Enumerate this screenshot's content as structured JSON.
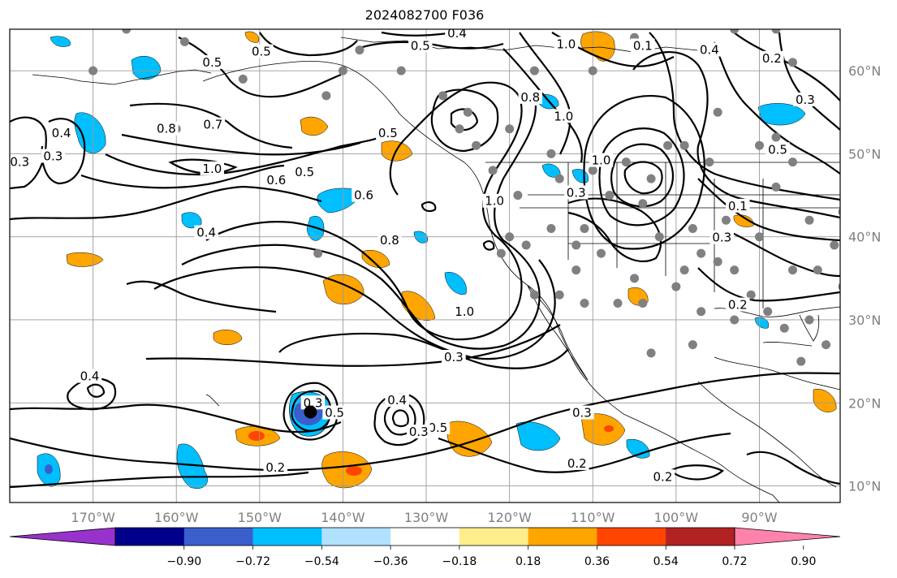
{
  "title": "2024082700 F036",
  "lon_labels": [
    "170°W",
    "160°W",
    "150°W",
    "140°W",
    "130°W",
    "120°W",
    "110°W",
    "100°W",
    "90°W"
  ],
  "lat_labels": [
    "60°N",
    "50°N",
    "40°N",
    "30°N",
    "20°N",
    "10°N"
  ],
  "colorbar": {
    "colors": [
      "#9932cc",
      "#00008b",
      "#3a5fcd",
      "#00bfff",
      "#b0e2ff",
      "#ffffff",
      "#ffec8b",
      "#ffa500",
      "#ff4500",
      "#b22222",
      "#ff82ab"
    ],
    "tick_labels": [
      "−0.90",
      "−0.72",
      "−0.54",
      "−0.36",
      "−0.18",
      "0.18",
      "0.36",
      "0.54",
      "0.72",
      "0.90"
    ]
  },
  "contour_labels": [
    {
      "text": "0.5",
      "lon": -149.8,
      "lat": 62.3
    },
    {
      "text": "0.5",
      "lon": -130.7,
      "lat": 63.0
    },
    {
      "text": "0.4",
      "lon": -126.3,
      "lat": 64.5
    },
    {
      "text": "1.0",
      "lon": -113.2,
      "lat": 63.2
    },
    {
      "text": "0.1",
      "lon": -104.0,
      "lat": 63.0
    },
    {
      "text": "0.4",
      "lon": -96.0,
      "lat": 62.5
    },
    {
      "text": "0.2",
      "lon": -88.5,
      "lat": 61.5
    },
    {
      "text": "0.3",
      "lon": -84.5,
      "lat": 56.5
    },
    {
      "text": "0.5",
      "lon": -87.8,
      "lat": 50.5
    },
    {
      "text": "0.5",
      "lon": -155.7,
      "lat": 61.0
    },
    {
      "text": "0.8",
      "lon": -161.2,
      "lat": 53.0
    },
    {
      "text": "0.7",
      "lon": -155.6,
      "lat": 53.5
    },
    {
      "text": "1.0",
      "lon": -155.7,
      "lat": 48.2
    },
    {
      "text": "0.6",
      "lon": -148.0,
      "lat": 46.8
    },
    {
      "text": "0.5",
      "lon": -144.6,
      "lat": 47.8
    },
    {
      "text": "0.6",
      "lon": -137.5,
      "lat": 45.0
    },
    {
      "text": "0.4",
      "lon": -156.4,
      "lat": 40.5
    },
    {
      "text": "0.8",
      "lon": -134.4,
      "lat": 39.6
    },
    {
      "text": "0.5",
      "lon": -134.6,
      "lat": 52.5
    },
    {
      "text": "1.0",
      "lon": -121.8,
      "lat": 44.3
    },
    {
      "text": "0.8",
      "lon": -117.5,
      "lat": 56.8
    },
    {
      "text": "1.0",
      "lon": -113.5,
      "lat": 54.5
    },
    {
      "text": "1.0",
      "lon": -109.0,
      "lat": 49.2
    },
    {
      "text": "0.3",
      "lon": -112.0,
      "lat": 45.3
    },
    {
      "text": "0.4",
      "lon": -173.8,
      "lat": 52.5
    },
    {
      "text": "0.3",
      "lon": -174.8,
      "lat": 49.7
    },
    {
      "text": "0.3",
      "lon": -178.8,
      "lat": 49.0
    },
    {
      "text": "1.0",
      "lon": -125.4,
      "lat": 31.0
    },
    {
      "text": "0.3",
      "lon": -126.7,
      "lat": 25.5
    },
    {
      "text": "0.4",
      "lon": -170.4,
      "lat": 23.2
    },
    {
      "text": "0.3",
      "lon": -143.6,
      "lat": 20.0
    },
    {
      "text": "0.5",
      "lon": -141.0,
      "lat": 18.8
    },
    {
      "text": "0.4",
      "lon": -133.5,
      "lat": 20.3
    },
    {
      "text": "0.5",
      "lon": -128.6,
      "lat": 17.0
    },
    {
      "text": "0.3",
      "lon": -130.9,
      "lat": 16.5
    },
    {
      "text": "0.3",
      "lon": -111.3,
      "lat": 18.8
    },
    {
      "text": "0.2",
      "lon": -148.1,
      "lat": 12.2
    },
    {
      "text": "0.2",
      "lon": -111.9,
      "lat": 12.7
    },
    {
      "text": "0.2",
      "lon": -101.6,
      "lat": 11.1
    },
    {
      "text": "0.3",
      "lon": -94.5,
      "lat": 39.9
    },
    {
      "text": "0.1",
      "lon": -92.6,
      "lat": 43.7
    },
    {
      "text": "0.2",
      "lon": -92.6,
      "lat": 31.8
    }
  ],
  "station_markers": {
    "symbol": "gray-dot",
    "color": "#808080",
    "points": [
      [
        -166,
        65
      ],
      [
        -159,
        63.5
      ],
      [
        -160,
        53
      ],
      [
        -170,
        60
      ],
      [
        -152,
        59
      ],
      [
        -140,
        60
      ],
      [
        -138,
        62.5
      ],
      [
        -133,
        60
      ],
      [
        -128,
        57
      ],
      [
        -120,
        53
      ],
      [
        -122,
        48
      ],
      [
        -119,
        45
      ],
      [
        -117,
        60
      ],
      [
        -110,
        60
      ],
      [
        -105,
        64
      ],
      [
        -93,
        65
      ],
      [
        -88,
        65
      ],
      [
        -86,
        61
      ],
      [
        -95,
        55
      ],
      [
        -99,
        51
      ],
      [
        -101,
        51
      ],
      [
        -103,
        47
      ],
      [
        -104,
        44
      ],
      [
        -108,
        45
      ],
      [
        -115,
        50
      ],
      [
        -114,
        47
      ],
      [
        -110,
        48
      ],
      [
        -106,
        49
      ],
      [
        -96,
        49
      ],
      [
        -90,
        51
      ],
      [
        -88,
        52
      ],
      [
        -86,
        49
      ],
      [
        -84,
        42
      ],
      [
        -98,
        41
      ],
      [
        -94,
        42
      ],
      [
        -88,
        46
      ],
      [
        -90,
        40
      ],
      [
        -95,
        37
      ],
      [
        -97,
        38
      ],
      [
        -99,
        36
      ],
      [
        -102,
        40
      ],
      [
        -105,
        35
      ],
      [
        -109,
        38
      ],
      [
        -111,
        41
      ],
      [
        -112,
        39
      ],
      [
        -115,
        41
      ],
      [
        -118,
        39
      ],
      [
        -120,
        40
      ],
      [
        -121,
        38
      ],
      [
        -112,
        36
      ],
      [
        -114,
        33
      ],
      [
        -117,
        33
      ],
      [
        -111,
        32
      ],
      [
        -107,
        32
      ],
      [
        -104,
        32
      ],
      [
        -100,
        34
      ],
      [
        -97,
        31
      ],
      [
        -93,
        30
      ],
      [
        -91,
        33
      ],
      [
        -89,
        31
      ],
      [
        -87,
        29
      ],
      [
        -84,
        30
      ],
      [
        -82,
        27
      ],
      [
        -85,
        25
      ],
      [
        -80,
        34
      ],
      [
        -79,
        37
      ],
      [
        -81,
        39
      ],
      [
        -80,
        43
      ],
      [
        -77,
        40
      ],
      [
        -98,
        27
      ],
      [
        -103,
        26
      ],
      [
        -93,
        36
      ],
      [
        -86,
        36
      ],
      [
        -83,
        36
      ],
      [
        -126,
        53
      ],
      [
        -124,
        51
      ],
      [
        -142,
        57
      ],
      [
        -125,
        55
      ],
      [
        -143,
        38
      ]
    ]
  },
  "cyclone_center": {
    "lon": -143.9,
    "lat": 18.9
  }
}
